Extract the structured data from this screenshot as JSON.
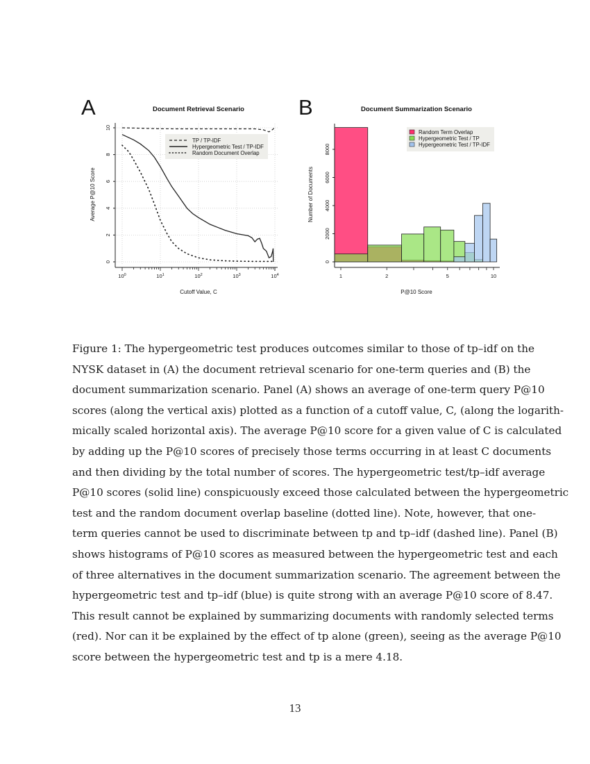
{
  "caption": {
    "lines": [
      "Figure 1: The hypergeometric test produces outcomes similar to those of tp–idf on the",
      "NYSK dataset in (A) the document retrieval scenario for one-term queries and (B) the",
      "document summarization scenario. Panel (A) shows an average of one-term query P@10",
      "scores (along the vertical axis) plotted as a function of a cutoff value, C, (along the logarith-",
      "mically scaled horizontal axis). The average P@10 score for a given value of C is calculated",
      "by adding up the P@10 scores of precisely those terms occurring in at least C documents",
      "and then dividing by the total number of scores. The hypergeometric test/tp–idf average",
      "P@10 scores (solid line) conspicuously exceed those calculated between the hypergeometric",
      "test and the random document overlap baseline (dotted line). Note, however, that one-",
      "term queries cannot be used to discriminate between tp and tp–idf (dashed line). Panel (B)",
      "shows histograms of P@10 scores as measured between the hypergeometric test and each",
      "of three alternatives in the document summarization scenario. The agreement between the",
      "hypergeometric test and tp–idf (blue) is quite strong with an average P@10 score of 8.47.",
      "This result cannot be explained by summarizing documents with randomly selected terms",
      "(red). Nor can it be explained by the effect of tp alone (green), seeing as the average P@10",
      "score between the hypergeometric test and tp is a mere 4.18."
    ]
  },
  "page_number": "13",
  "chart_data": [
    {
      "panel_label": "A",
      "type": "line",
      "title": "Document Retrieval Scenario",
      "xlabel": "Cutoff Value, C",
      "ylabel": "Average P@10 Score",
      "xscale": "log",
      "xlim": [
        1,
        10000
      ],
      "ylim": [
        0,
        10
      ],
      "xticks": [
        "10^0",
        "10^1",
        "10^2",
        "10^3",
        "10^4"
      ],
      "xtick_values": [
        1,
        10,
        100,
        1000,
        10000
      ],
      "yticks": [
        "0",
        "2",
        "4",
        "6",
        "8",
        "10"
      ],
      "grid": true,
      "legend_position": "top-right",
      "series": [
        {
          "name": "TP / TP-IDF",
          "style": "dashed",
          "x": [
            1,
            3,
            10,
            30,
            100,
            300,
            1000,
            3000,
            5000,
            7000,
            8000,
            9000,
            9500
          ],
          "y": [
            10,
            9.97,
            9.93,
            9.92,
            9.92,
            9.92,
            9.92,
            9.92,
            9.85,
            9.7,
            9.8,
            9.9,
            10
          ]
        },
        {
          "name": "Hypergeometric Test / TP-IDF",
          "style": "solid",
          "x": [
            1,
            2,
            3,
            5,
            7,
            10,
            15,
            20,
            30,
            50,
            70,
            100,
            200,
            300,
            500,
            1000,
            2000,
            2500,
            3000,
            3500,
            4000,
            4500,
            5000,
            6000,
            7000,
            8000,
            8800,
            9000,
            9100
          ],
          "y": [
            9.5,
            9.1,
            8.8,
            8.3,
            7.8,
            7.1,
            6.2,
            5.6,
            4.9,
            4.0,
            3.6,
            3.3,
            2.8,
            2.6,
            2.35,
            2.1,
            1.95,
            1.8,
            1.5,
            1.7,
            1.75,
            1.4,
            1.0,
            0.8,
            0.3,
            0.4,
            0.8,
            1.0,
            0.0
          ]
        },
        {
          "name": "Random Document Overlap",
          "style": "dotted",
          "x": [
            1,
            1.5,
            2,
            3,
            5,
            7,
            10,
            15,
            20,
            30,
            50,
            100,
            200,
            500,
            1000,
            3000,
            10000
          ],
          "y": [
            8.7,
            8.2,
            7.6,
            6.7,
            5.4,
            4.3,
            3.1,
            2.1,
            1.5,
            1.0,
            0.6,
            0.3,
            0.15,
            0.08,
            0.05,
            0.03,
            0.03
          ]
        }
      ]
    },
    {
      "panel_label": "B",
      "type": "bar",
      "title": "Document Summarization Scenario",
      "xlabel": "P@10 Score",
      "ylabel": "Number of Documents",
      "xscale": "log",
      "xticks": [
        "1",
        "2",
        "5",
        "10"
      ],
      "xtick_values": [
        1,
        2,
        5,
        10
      ],
      "yticks": [
        "0",
        "2000",
        "4000",
        "6000",
        "8000"
      ],
      "ylim": [
        0,
        9600
      ],
      "legend_position": "top-right",
      "bin_edges": [
        0.91,
        1.5,
        2.5,
        3.5,
        4.5,
        5.5,
        6.5,
        7.5,
        8.5,
        9.5,
        10.5
      ],
      "series": [
        {
          "name": "Random Term Overlap",
          "color": "#ff2f6e",
          "values": [
            9550,
            1075,
            120,
            80,
            60,
            0,
            0,
            0,
            0,
            0
          ]
        },
        {
          "name": "Hypergeometric Test / TP",
          "color": "#86dd52",
          "values": [
            560,
            1190,
            1980,
            2480,
            2260,
            1450,
            660,
            160,
            0,
            0
          ]
        },
        {
          "name": "Hypergeometric Test / TP-IDF",
          "color": "#a3c4ee",
          "values": [
            0,
            0,
            0,
            0,
            0,
            360,
            1320,
            3300,
            4160,
            1620
          ]
        }
      ]
    }
  ]
}
